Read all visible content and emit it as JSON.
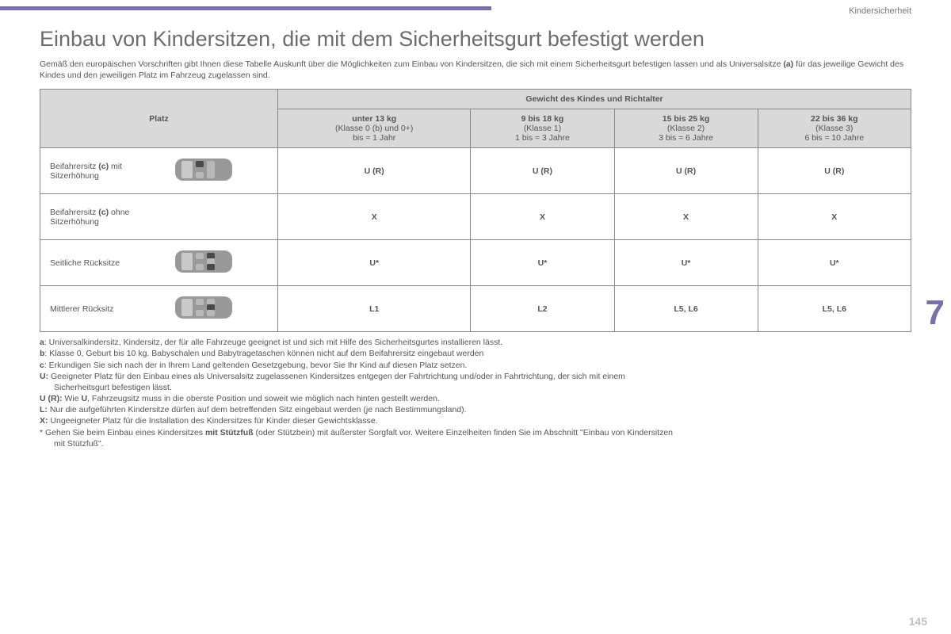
{
  "header": {
    "section_label": "Kindersicherheit",
    "title": "Einbau von Kindersitzen, die mit dem Sicherheitsgurt befestigt werden",
    "intro_a": "Gemäß den europäischen Vorschriften gibt Ihnen diese Tabelle Auskunft über die Möglichkeiten zum Einbau von Kindersitzen, die sich mit einem Sicherheitsgurt befestigen lassen und als Universalsitze ",
    "intro_bold": "(a)",
    "intro_b": " für das jeweilige Gewicht des Kindes und den jeweiligen Platz im Fahrzeug zugelassen sind."
  },
  "table": {
    "group_header": "Gewicht des Kindes und Richtalter",
    "platz_label": "Platz",
    "columns": [
      {
        "top": "unter 13 kg",
        "mid": "(Klasse 0 (b) und 0+)",
        "bot": "bis ≈ 1 Jahr"
      },
      {
        "top": "9 bis 18 kg",
        "mid": "(Klasse 1)",
        "bot": "1 bis ≈ 3 Jahre"
      },
      {
        "top": "15 bis 25 kg",
        "mid": "(Klasse 2)",
        "bot": "3 bis ≈ 6 Jahre"
      },
      {
        "top": "22 bis 36 kg",
        "mid": "(Klasse 3)",
        "bot": "6 bis ≈ 10 Jahre"
      }
    ],
    "rows": [
      {
        "label_a": "Beifahrersitz ",
        "label_bold": "(c)",
        "label_b": " mit Sitzerhöhung",
        "car": true,
        "highlight": [
          0
        ],
        "cells": [
          "U (R)",
          "U (R)",
          "U (R)",
          "U (R)"
        ]
      },
      {
        "label_a": "Beifahrersitz ",
        "label_bold": "(c)",
        "label_b": " ohne Sitzerhöhung",
        "car": false,
        "highlight": [],
        "cells": [
          "X",
          "X",
          "X",
          "X"
        ]
      },
      {
        "label_a": "Seitliche Rücksitze",
        "label_bold": "",
        "label_b": "",
        "car": true,
        "highlight": [
          1,
          3
        ],
        "cells": [
          "U*",
          "U*",
          "U*",
          "U*"
        ]
      },
      {
        "label_a": "Mittlerer Rücksitz",
        "label_bold": "",
        "label_b": "",
        "car": true,
        "highlight": [
          2
        ],
        "cells": [
          "L1",
          "L2",
          "L5, L6",
          "L5, L6"
        ]
      }
    ]
  },
  "notes": {
    "a": ": Universalkindersitz, Kindersitz, der für alle Fahrzeuge geeignet ist und sich mit Hilfe des Sicherheitsgurtes installieren lässt.",
    "b": ": Klasse 0, Geburt bis 10 kg. Babyschalen und Babytragetaschen können nicht auf dem Beifahrersitz eingebaut werden",
    "c": ": Erkundigen Sie sich nach der in Ihrem Land geltenden Gesetzgebung, bevor Sie Ihr Kind auf diesen Platz setzen.",
    "U_a": " Geeigneter Platz für den Einbau eines als Universalsitz zugelassenen Kindersitzes entgegen der Fahrtrichtung und/oder in Fahrtrichtung, der sich mit einem",
    "U_b": "Sicherheitsgurt befestigen lässt.",
    "UR_a": " Wie ",
    "UR_bold": "U",
    "UR_b": ", Fahrzeugsitz muss in die oberste Position und soweit wie möglich nach hinten gestellt werden.",
    "L": " Nur die aufgeführten Kindersitze dürfen auf dem betreffenden Sitz eingebaut werden (je nach Bestimmungsland).",
    "X": " Ungeeigneter Platz für die Installation des Kindersitzes für Kinder dieser Gewichtsklasse.",
    "star_a": "* Gehen Sie beim Einbau eines Kindersitzes ",
    "star_bold": "mit Stützfuß",
    "star_b": " (oder Stützbein) mit äußerster Sorgfalt vor. Weitere Einzelheiten finden Sie im Abschnitt \"Einbau von Kindersitzen",
    "star_c": "mit Stützfuß\"."
  },
  "chapter_number": "7",
  "page_number": "145",
  "colors": {
    "accent": "#7a6eac",
    "header_bg": "#d9d9d9",
    "text": "#555555",
    "car_body": "#999999",
    "car_seat": "#b8b8b8",
    "car_seat_hi": "#4a4a4a"
  }
}
